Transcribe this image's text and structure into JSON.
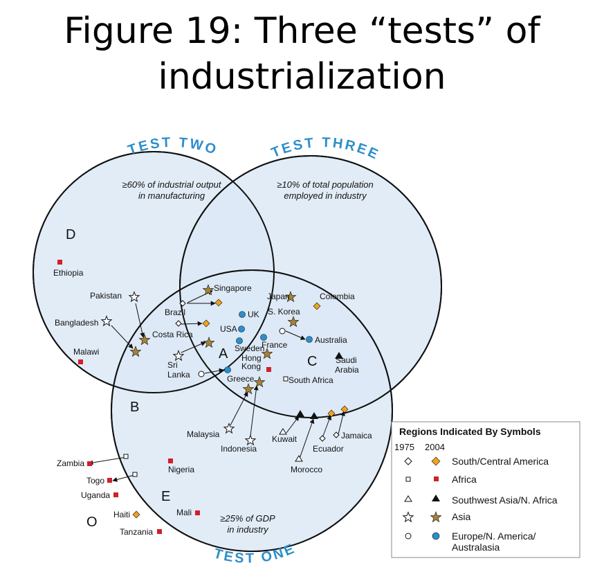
{
  "title": {
    "line1": "Figure 19: Three “tests” of",
    "line2": "industrialization"
  },
  "colors": {
    "circle_fill": "#dce9f6",
    "circle_stroke": "#111111",
    "test_label": "#2d8ec9",
    "africa": "#d0202a",
    "south_central_america": "#f0a21e",
    "asia": "#a5823a",
    "europe": "#2a8fcc",
    "sw_asia": "#111111"
  },
  "tests": {
    "two": "TEST TWO",
    "three": "TEST THREE",
    "one": "TEST ONE"
  },
  "captions": {
    "two_line1": "≥60% of industrial output",
    "two_line2": "in manufacturing",
    "three_line1": "≥10% of total population",
    "three_line2": "employed in industry",
    "one_line1": "≥25% of GDP",
    "one_line2": "in industry"
  },
  "regions": {
    "A": "A",
    "B": "B",
    "C": "C",
    "D": "D",
    "E": "E",
    "O": "O"
  },
  "countries": {
    "ethiopia": "Ethiopia",
    "pakistan": "Pakistan",
    "bangladesh": "Bangladesh",
    "malawi": "Malawi",
    "singapore": "Singapore",
    "brazil": "Brazil",
    "costa_rica": "Costa Rica",
    "sri": "Sri",
    "lanka": "Lanka",
    "uk": "UK",
    "usa": "USA",
    "japan": "Japan",
    "s_korea": "S. Korea",
    "colombia": "Colombia",
    "france": "France",
    "australia": "Australia",
    "sweden": "Sweden",
    "hong": "Hong",
    "kong": "Kong",
    "greece": "Greece",
    "saudi": "Saudi",
    "arabia": "Arabia",
    "south_africa": "South Africa",
    "malaysia": "Malaysia",
    "indonesia": "Indonesia",
    "kuwait": "Kuwait",
    "jamaica": "Jamaica",
    "ecuador": "Ecuador",
    "morocco": "Morocco",
    "zambia": "Zambia",
    "togo": "Togo",
    "uganda": "Uganda",
    "nigeria": "Nigeria",
    "haiti": "Haiti",
    "tanzania": "Tanzania",
    "mali": "Mali"
  },
  "legend": {
    "heading": "Regions Indicated By Symbols",
    "year1": "1975",
    "year2": "2004",
    "items": [
      "South/Central America",
      "Africa",
      "Southwest Asia/N. Africa",
      "Asia",
      "Europe/N. America/",
      "Australasia"
    ]
  },
  "icons": [
    "diamond-icon",
    "square-icon",
    "triangle-icon",
    "star-icon",
    "circle-icon",
    "arrow-icon"
  ]
}
